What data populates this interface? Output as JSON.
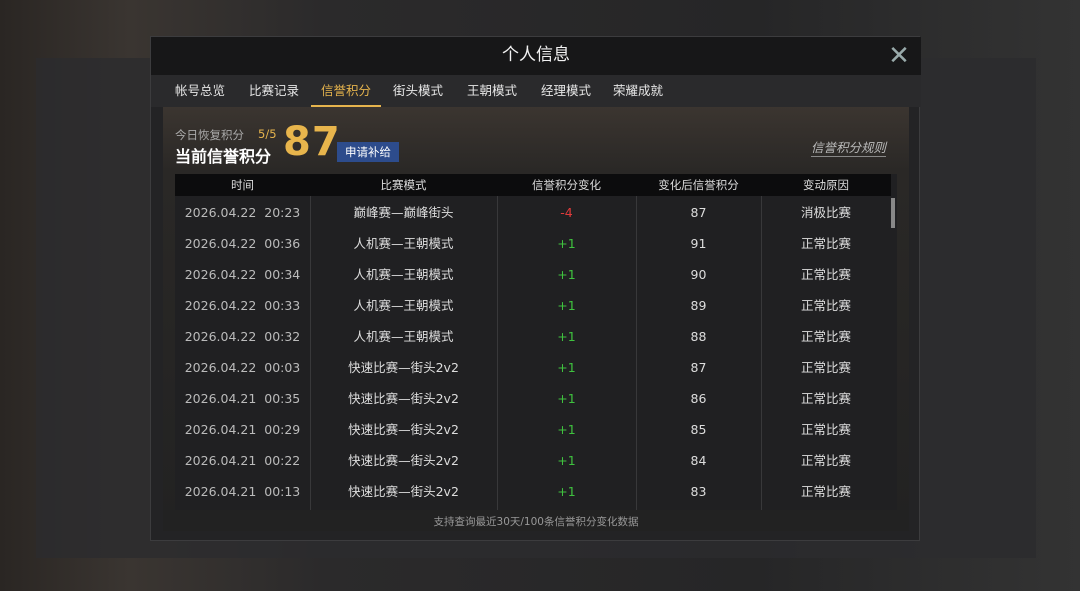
{
  "dialog": {
    "title": "个人信息",
    "tabs": [
      "帐号总览",
      "比赛记录",
      "信誉积分",
      "街头模式",
      "王朝模式",
      "经理模式",
      "荣耀成就"
    ],
    "active_tab": 2,
    "header": {
      "recover_label": "今日恢复积分",
      "recover_value": "5/5",
      "score_label": "当前信誉积分",
      "score": "87",
      "apply_button": "申请补给",
      "rules_link": "信誉积分规则"
    },
    "table": {
      "columns": [
        "时间",
        "比赛模式",
        "信誉积分变化",
        "变化后信誉积分",
        "变动原因"
      ],
      "rows": [
        [
          "2026.04.22  20:23",
          "巅峰赛—巅峰街头",
          "-4",
          "87",
          "消极比赛"
        ],
        [
          "2026.04.22  00:36",
          "人机赛—王朝模式",
          "+1",
          "91",
          "正常比赛"
        ],
        [
          "2026.04.22  00:34",
          "人机赛—王朝模式",
          "+1",
          "90",
          "正常比赛"
        ],
        [
          "2026.04.22  00:33",
          "人机赛—王朝模式",
          "+1",
          "89",
          "正常比赛"
        ],
        [
          "2026.04.22  00:32",
          "人机赛—王朝模式",
          "+1",
          "88",
          "正常比赛"
        ],
        [
          "2026.04.22  00:03",
          "快速比赛—街头2v2",
          "+1",
          "87",
          "正常比赛"
        ],
        [
          "2026.04.21  00:35",
          "快速比赛—街头2v2",
          "+1",
          "86",
          "正常比赛"
        ],
        [
          "2026.04.21  00:29",
          "快速比赛—街头2v2",
          "+1",
          "85",
          "正常比赛"
        ],
        [
          "2026.04.21  00:22",
          "快速比赛—街头2v2",
          "+1",
          "84",
          "正常比赛"
        ],
        [
          "2026.04.21  00:13",
          "快速比赛—街头2v2",
          "+1",
          "83",
          "正常比赛"
        ]
      ]
    },
    "footer_note": "支持查询最近30天/100条信誉积分变化数据"
  }
}
